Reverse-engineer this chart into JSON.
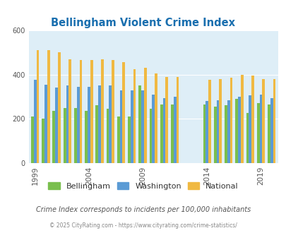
{
  "title": "Bellingham Violent Crime Index",
  "title_color": "#1a6faf",
  "fig_bg_color": "#ffffff",
  "plot_bg_color": "#deeef7",
  "years": [
    1999,
    2000,
    2001,
    2002,
    2003,
    2004,
    2005,
    2006,
    2007,
    2008,
    2009,
    2010,
    2011,
    2012,
    2014,
    2015,
    2016,
    2017,
    2018,
    2019,
    2020
  ],
  "bellingham": [
    210,
    200,
    235,
    250,
    250,
    235,
    260,
    245,
    210,
    210,
    350,
    245,
    265,
    265,
    265,
    255,
    260,
    290,
    225,
    270,
    265
  ],
  "washington": [
    375,
    355,
    340,
    350,
    345,
    345,
    350,
    350,
    330,
    330,
    330,
    310,
    295,
    300,
    280,
    285,
    285,
    300,
    305,
    310,
    295
  ],
  "national": [
    510,
    510,
    500,
    470,
    465,
    465,
    470,
    465,
    455,
    425,
    430,
    405,
    390,
    390,
    375,
    380,
    385,
    400,
    395,
    380,
    380
  ],
  "bellingham_color": "#7abf4e",
  "washington_color": "#5b9bd5",
  "national_color": "#f0b942",
  "ylim": [
    0,
    600
  ],
  "yticks": [
    0,
    200,
    400,
    600
  ],
  "subtitle": "Crime Index corresponds to incidents per 100,000 inhabitants",
  "subtitle_color": "#555555",
  "footer": "© 2025 CityRating.com - https://www.cityrating.com/crime-statistics/",
  "footer_color": "#888888",
  "legend_labels": [
    "Bellingham",
    "Washington",
    "National"
  ],
  "tick_label_years": [
    1999,
    2004,
    2009,
    2014,
    2019
  ]
}
